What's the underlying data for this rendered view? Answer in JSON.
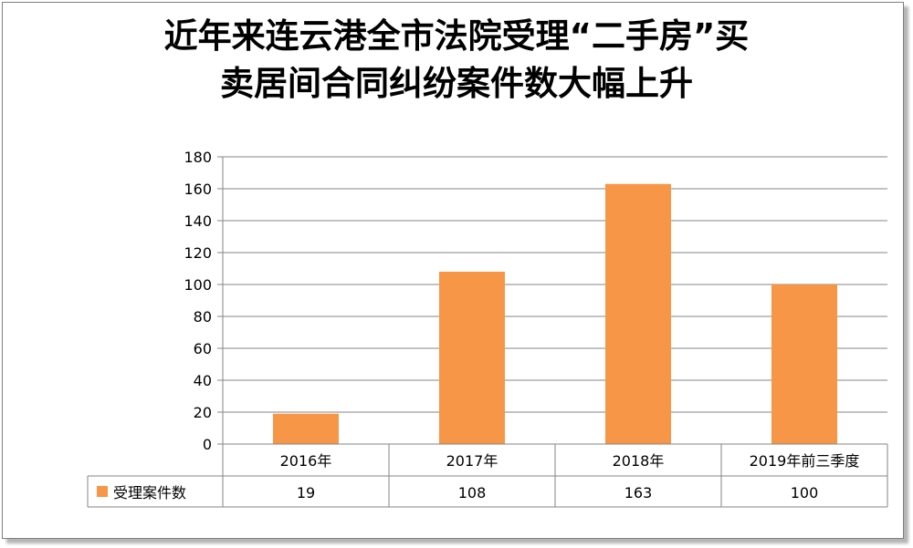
{
  "title_line1": "近年来连云港全市法院受理“二手房”买",
  "title_line2": "卖居间合同纠纷案件数大幅上升",
  "colors": {
    "bar": "#f79646",
    "grid": "#868686",
    "axis": "#868686"
  },
  "chart_data": {
    "type": "bar",
    "title": "近年来连云港全市法院受理“二手房”买卖居间合同纠纷案件数大幅上升",
    "categories": [
      "2016年",
      "2017年",
      "2018年",
      "2019年前三季度"
    ],
    "series": [
      {
        "name": "受理案件数",
        "values": [
          19,
          108,
          163,
          100
        ]
      }
    ],
    "ylim": [
      0,
      180
    ],
    "yticks": [
      0,
      20,
      40,
      60,
      80,
      100,
      120,
      140,
      160,
      180
    ],
    "grid": true,
    "legend_placement": "data-table",
    "data_table": true
  }
}
